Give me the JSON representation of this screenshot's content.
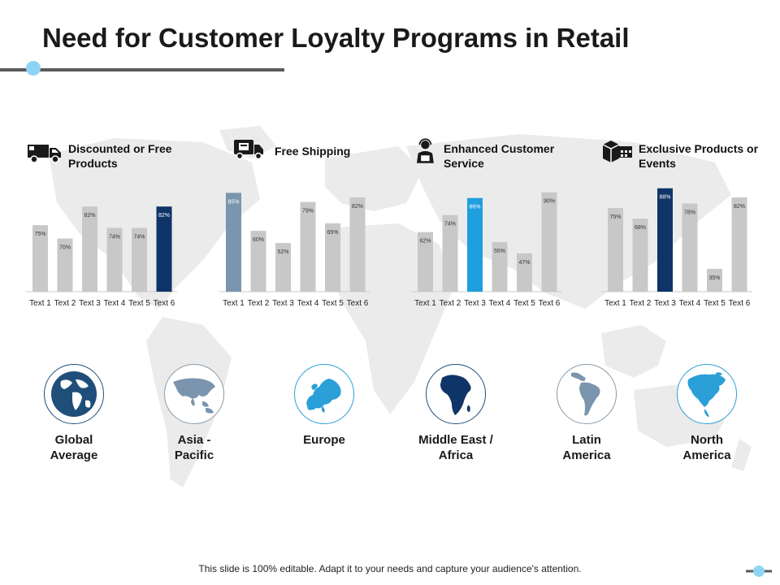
{
  "title": "Need for Customer Loyalty Programs in Retail",
  "colors": {
    "grey": "#c8c8c8",
    "navy": "#0f3467",
    "slate": "#7a95ad",
    "sky": "#1f9ee0",
    "accent": "#8ed4f5"
  },
  "chart_data": [
    {
      "type": "bar",
      "title": "Discounted or Free Products",
      "icon": "delivery-truck-icon",
      "categories": [
        "Text 1",
        "Text 2",
        "Text 3",
        "Text 4",
        "Text 5",
        "Text 6"
      ],
      "values": [
        75,
        70,
        82,
        74,
        74,
        82
      ],
      "labels": [
        "75%",
        "70%",
        "82%",
        "74%",
        "74%",
        "82%"
      ],
      "highlight": 5,
      "highlight_color": "#0f3467",
      "ylim": [
        50,
        90
      ]
    },
    {
      "type": "bar",
      "title": "Free Shipping",
      "icon": "shipping-truck-icon",
      "categories": [
        "Text 1",
        "Text 2",
        "Text 3",
        "Text 4",
        "Text 5",
        "Text 6"
      ],
      "values": [
        85,
        60,
        52,
        79,
        65,
        82
      ],
      "labels": [
        "85%",
        "60%",
        "52%",
        "79%",
        "65%",
        "82%"
      ],
      "highlight": 0,
      "highlight_color": "#7a95ad",
      "ylim": [
        20,
        90
      ]
    },
    {
      "type": "bar",
      "title": "Enhanced Customer Service",
      "icon": "customer-service-agent-icon",
      "categories": [
        "Text 1",
        "Text 2",
        "Text 3",
        "Text 4",
        "Text 5",
        "Text 6"
      ],
      "values": [
        62,
        74,
        86,
        55,
        47,
        90
      ],
      "labels": [
        "62%",
        "74%",
        "86%",
        "55%",
        "47%",
        "90%"
      ],
      "highlight": 2,
      "highlight_color": "#1f9ee0",
      "ylim": [
        20,
        95
      ]
    },
    {
      "type": "bar",
      "title": "Exclusive Products or Events",
      "icon": "products-calendar-icon",
      "categories": [
        "Text 1",
        "Text 2",
        "Text 3",
        "Text 4",
        "Text 5",
        "Text 6"
      ],
      "values": [
        75,
        68,
        88,
        78,
        35,
        82
      ],
      "labels": [
        "75%",
        "68%",
        "88%",
        "78%",
        "35%",
        "82%"
      ],
      "highlight": 2,
      "highlight_color": "#0f3467",
      "ylim": [
        20,
        90
      ]
    }
  ],
  "regions": [
    {
      "label": "Global Average",
      "icon": "globe-icon"
    },
    {
      "label": "Asia - Pacific",
      "icon": "asia-map-icon"
    },
    {
      "label": "Europe",
      "icon": "europe-map-icon"
    },
    {
      "label": "Middle East / Africa",
      "icon": "africa-map-icon"
    },
    {
      "label": "Latin America",
      "icon": "south-america-map-icon"
    },
    {
      "label": "North America",
      "icon": "north-america-map-icon"
    }
  ],
  "footer": "This slide is 100% editable. Adapt it to your needs and capture your audience's attention."
}
